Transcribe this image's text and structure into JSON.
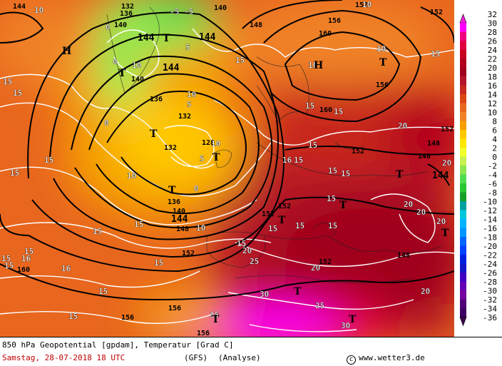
{
  "footer": {
    "title": "850 hPa Geopotential [gpdam], Temperatur [Grad C]",
    "date": "Samstag, 28-07-2018  18 UTC",
    "model": "(GFS)",
    "mode": "(Analyse)",
    "credit": "www.wetter3.de"
  },
  "scale": {
    "labels": [
      "32",
      "30",
      "28",
      "26",
      "24",
      "22",
      "20",
      "18",
      "16",
      "14",
      "12",
      "10",
      "8",
      "6",
      "4",
      "2",
      "0",
      "-2",
      "-4",
      "-6",
      "-8",
      "-10",
      "-12",
      "-14",
      "-16",
      "-18",
      "-20",
      "-22",
      "-24",
      "-26",
      "-28",
      "-30",
      "-32",
      "-34",
      "-36"
    ],
    "colors": [
      "#f51cde",
      "#ff00ff",
      "#f00080",
      "#e00040",
      "#c8001e",
      "#b2001e",
      "#a0001e",
      "#b41428",
      "#c8281e",
      "#dc4614",
      "#e8661e",
      "#f08228",
      "#f5a000",
      "#ffc800",
      "#ffe600",
      "#f0ff28",
      "#c8f050",
      "#8ce650",
      "#50dc50",
      "#28c832",
      "#14a028",
      "#00a0a0",
      "#00c8dc",
      "#00b4ff",
      "#0096ff",
      "#0064ff",
      "#0040ff",
      "#0020e0",
      "#1414c8",
      "#4000c0",
      "#6400b4",
      "#7800a0",
      "#500078",
      "#3c0064",
      "#3c0050"
    ]
  },
  "map": {
    "geopotential_labels": [
      "132",
      "136",
      "140",
      "144",
      "148",
      "152",
      "156",
      "160",
      "128",
      "10"
    ],
    "temperature_labels": [
      "-5",
      "0",
      "5",
      "10",
      "15",
      "20",
      "25",
      "30"
    ],
    "high_marker": "H",
    "low_marker": "T"
  }
}
